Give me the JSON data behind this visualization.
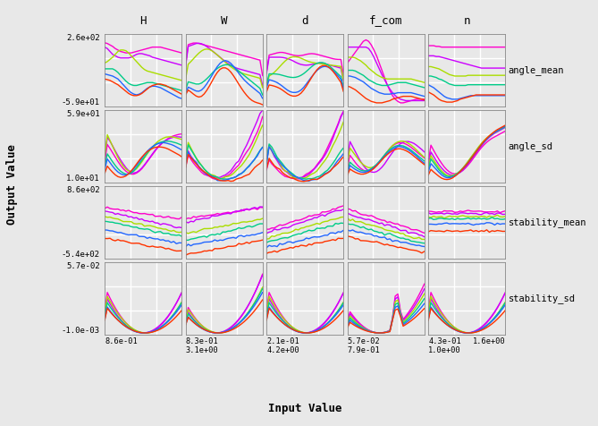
{
  "col_labels": [
    "H",
    "W",
    "d",
    "f_com",
    "n"
  ],
  "row_labels": [
    "angle_mean",
    "angle_sd",
    "stability_mean",
    "stability_sd"
  ],
  "y_tick_labels": [
    [
      "2.6e+02",
      "-5.9e+01"
    ],
    [
      "5.9e+01",
      "1.0e+01"
    ],
    [
      "8.6e+02",
      "-5.4e+02"
    ],
    [
      "5.7e-02",
      "-1.0e-03"
    ]
  ],
  "x_tick_labels": [
    "8.6e-01",
    "8.3e-01\n3.1e+00",
    "2.1e-01\n4.2e+00",
    "5.7e-02\n7.9e-01",
    "4.3e-01\n1.0e+00",
    "1.6e+00"
  ],
  "y_axis_label": "Output Value",
  "x_axis_label": "Input Value",
  "bg_color": "#e8e8e8",
  "grid_color": "#ffffff",
  "line_colors": [
    "#ff00cc",
    "#cc00ff",
    "#aadd00",
    "#00cc88",
    "#2266ff",
    "#ff3300"
  ],
  "figsize": [
    6.69,
    4.76
  ],
  "dpi": 100
}
